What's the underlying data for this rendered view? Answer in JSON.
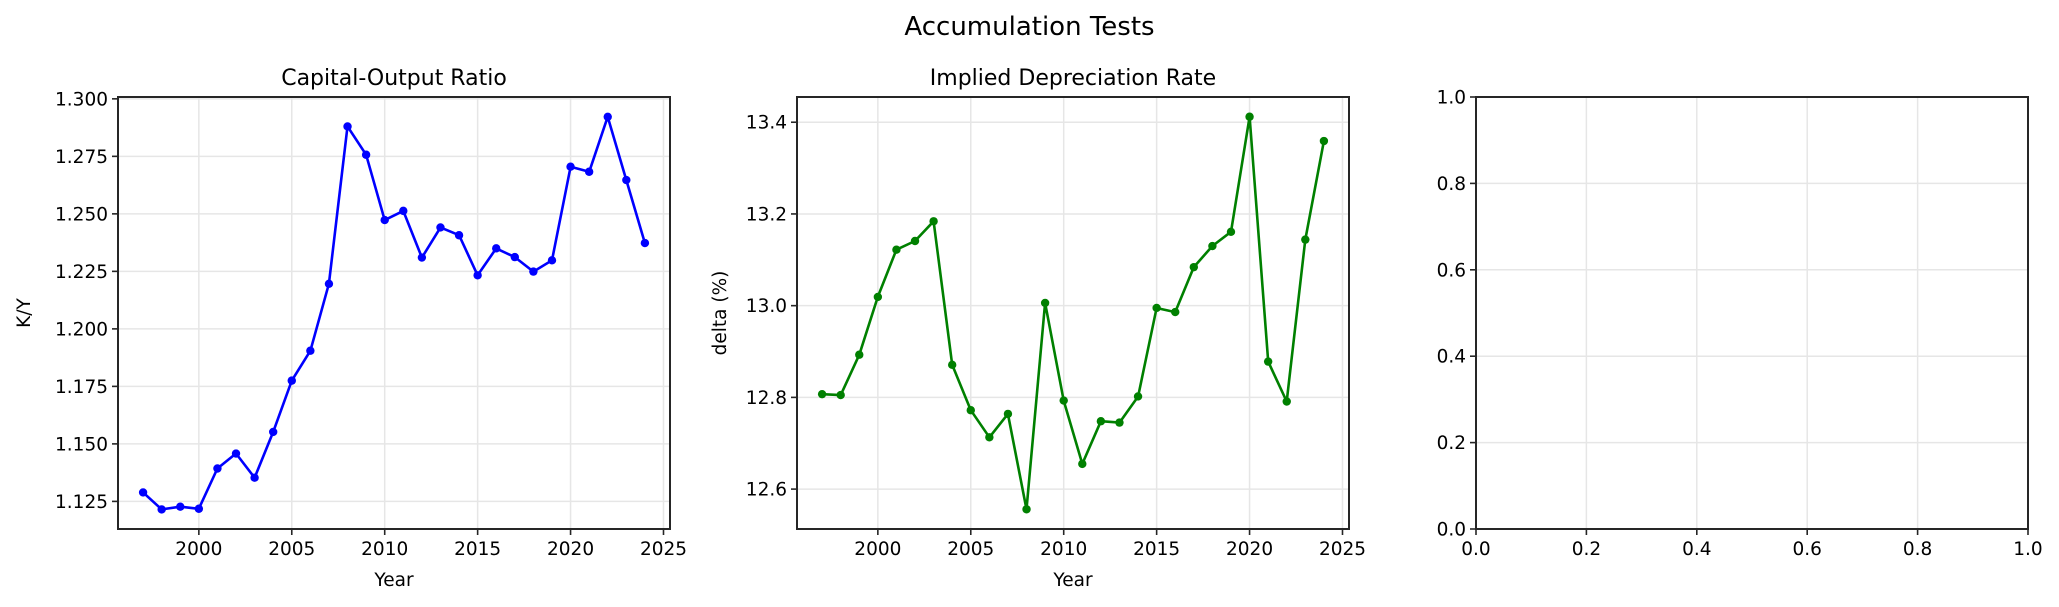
{
  "figure": {
    "suptitle": "Accumulation Tests"
  },
  "chart_data": [
    {
      "type": "line",
      "title": "Capital-Output Ratio",
      "xlabel": "Year",
      "ylabel": "K/Y",
      "color": "#0000ff",
      "marker": "circle",
      "grid": true,
      "xlim": [
        1995.65,
        2025.35
      ],
      "ylim": [
        1.113,
        1.3008
      ],
      "xticks": [
        2000,
        2005,
        2010,
        2015,
        2020,
        2025
      ],
      "xtick_labels": [
        "2000",
        "2005",
        "2010",
        "2015",
        "2020",
        "2025"
      ],
      "yticks": [
        1.125,
        1.15,
        1.175,
        1.2,
        1.225,
        1.25,
        1.275,
        1.3
      ],
      "ytick_labels": [
        "1.125",
        "1.150",
        "1.175",
        "1.200",
        "1.225",
        "1.250",
        "1.275",
        "1.300"
      ],
      "x": [
        1997,
        1998,
        1999,
        2000,
        2001,
        2002,
        2003,
        2004,
        2005,
        2006,
        2007,
        2008,
        2009,
        2010,
        2011,
        2012,
        2013,
        2014,
        2015,
        2016,
        2017,
        2018,
        2019,
        2020,
        2021,
        2022,
        2023,
        2024
      ],
      "values": [
        1.1289,
        1.1215,
        1.1227,
        1.1218,
        1.1393,
        1.1458,
        1.1353,
        1.1552,
        1.1775,
        1.1905,
        1.2196,
        1.288,
        1.2757,
        1.2473,
        1.2513,
        1.231,
        1.2441,
        1.2407,
        1.2233,
        1.235,
        1.2312,
        1.2249,
        1.2298,
        1.2705,
        1.2683,
        1.2922,
        1.2647,
        1.2373
      ]
    },
    {
      "type": "line",
      "title": "Implied Depreciation Rate",
      "xlabel": "Year",
      "ylabel": "delta (%)",
      "color": "#008000",
      "marker": "circle",
      "grid": true,
      "xlim": [
        1995.65,
        2025.35
      ],
      "ylim": [
        12.513,
        13.455
      ],
      "xticks": [
        2000,
        2005,
        2010,
        2015,
        2020,
        2025
      ],
      "xtick_labels": [
        "2000",
        "2005",
        "2010",
        "2015",
        "2020",
        "2025"
      ],
      "yticks": [
        12.6,
        12.8,
        13.0,
        13.2,
        13.4
      ],
      "ytick_labels": [
        "12.6",
        "12.8",
        "13.0",
        "13.2",
        "13.4"
      ],
      "x": [
        1997,
        1998,
        1999,
        2000,
        2001,
        2002,
        2003,
        2004,
        2005,
        2006,
        2007,
        2008,
        2009,
        2010,
        2011,
        2012,
        2013,
        2014,
        2015,
        2016,
        2017,
        2018,
        2019,
        2020,
        2021,
        2022,
        2023,
        2024
      ],
      "values": [
        12.807,
        12.805,
        12.893,
        13.019,
        13.122,
        13.141,
        13.184,
        12.871,
        12.772,
        12.713,
        12.764,
        12.556,
        13.006,
        12.793,
        12.655,
        12.748,
        12.745,
        12.802,
        12.995,
        12.986,
        13.084,
        13.13,
        13.161,
        13.412,
        12.878,
        12.791,
        13.144,
        13.359
      ]
    },
    {
      "type": "line",
      "title": "",
      "xlabel": "",
      "ylabel": "",
      "grid": true,
      "xlim": [
        0,
        1
      ],
      "ylim": [
        0,
        1
      ],
      "xticks": [
        0,
        0.2,
        0.4,
        0.6,
        0.8,
        1.0
      ],
      "xtick_labels": [
        "0.0",
        "0.2",
        "0.4",
        "0.6",
        "0.8",
        "1.0"
      ],
      "yticks": [
        0,
        0.2,
        0.4,
        0.6,
        0.8,
        1.0
      ],
      "ytick_labels": [
        "0.0",
        "0.2",
        "0.4",
        "0.6",
        "0.8",
        "1.0"
      ],
      "x": [],
      "values": []
    }
  ]
}
